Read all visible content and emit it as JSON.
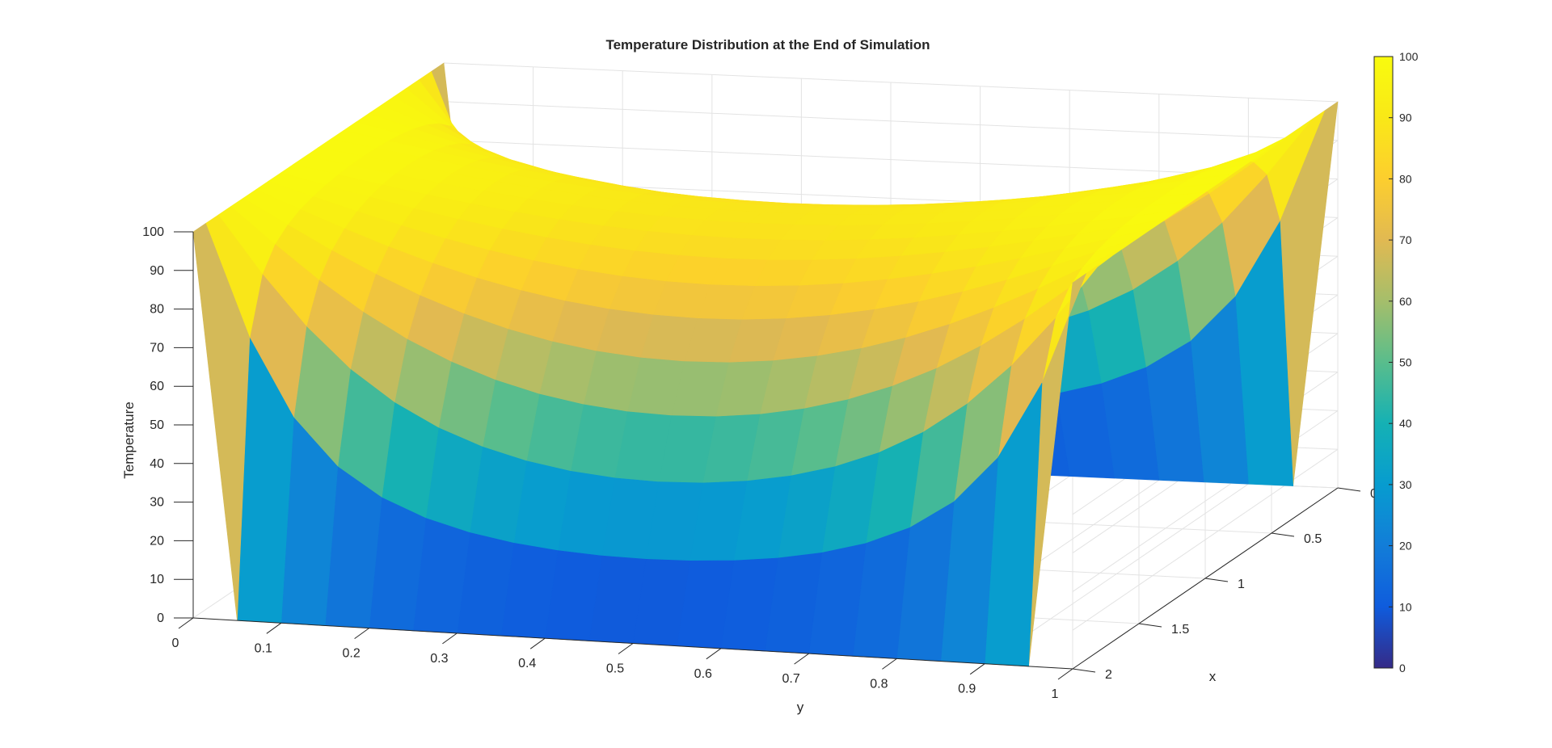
{
  "chart_data": {
    "type": "surface",
    "title": "Temperature Distribution at the End of Simulation",
    "xlabel": "x",
    "ylabel": "y",
    "zlabel": "Temperature",
    "x_range": [
      0,
      2
    ],
    "y_range": [
      0,
      1
    ],
    "zlim": [
      0,
      100
    ],
    "x_ticks": [
      "0",
      "0.5",
      "1",
      "1.5",
      "2"
    ],
    "y_ticks": [
      "0",
      "0.1",
      "0.2",
      "0.3",
      "0.4",
      "0.5",
      "0.6",
      "0.7",
      "0.8",
      "0.9",
      "1"
    ],
    "z_ticks": [
      "0",
      "10",
      "20",
      "30",
      "40",
      "50",
      "60",
      "70",
      "80",
      "90",
      "100"
    ],
    "grid": true,
    "colormap": "parula",
    "colorbar": {
      "location": "right",
      "limits": [
        0,
        100
      ],
      "ticks": [
        "0",
        "10",
        "20",
        "30",
        "40",
        "50",
        "60",
        "70",
        "80",
        "90",
        "100"
      ]
    },
    "boundary_conditions": {
      "y_eq_0": 100,
      "y_eq_1": 100,
      "x_eq_0": 0,
      "x_eq_2": 0
    },
    "grid_points": {
      "nx": 21,
      "ny": 21
    }
  }
}
